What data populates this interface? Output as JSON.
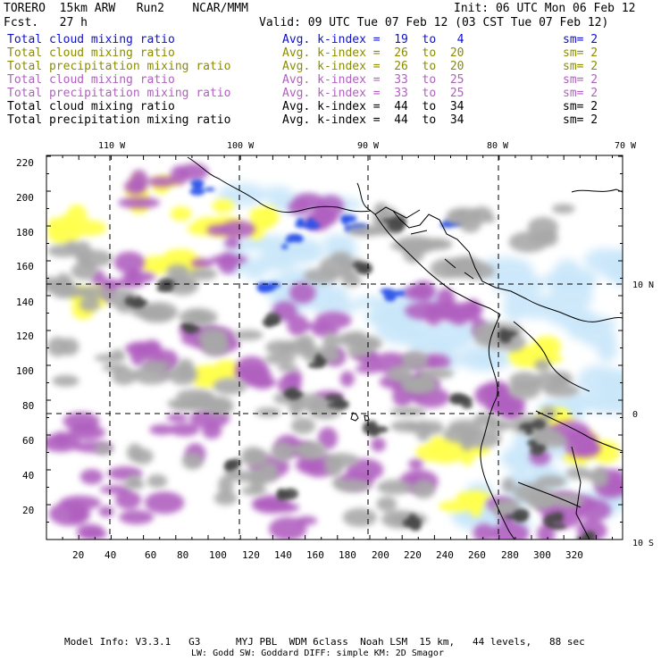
{
  "header": {
    "left_line1": "TORERO  15km ARW   Run2    NCAR/MMM",
    "left_line2": "Fcst.   27 h",
    "init": "Init: 06 UTC Mon 06 Feb 12",
    "valid": "Valid: 09 UTC Tue 07 Feb 12 (03 CST Tue 07 Feb 12)"
  },
  "legend": [
    {
      "field": "Total cloud mixing ratio",
      "kindex": "Avg. k-index =  19  to   4",
      "sm": "sm= 2",
      "color": "#1010d0"
    },
    {
      "field": "Total cloud mixing ratio",
      "kindex": "Avg. k-index =  26  to  20",
      "sm": "sm= 2",
      "color": "#8c8c00"
    },
    {
      "field": "Total precipitation mixing ratio",
      "kindex": "Avg. k-index =  26  to  20",
      "sm": "sm= 2",
      "color": "#8c8c00"
    },
    {
      "field": "Total cloud mixing ratio",
      "kindex": "Avg. k-index =  33  to  25",
      "sm": "sm= 2",
      "color": "#b060c0"
    },
    {
      "field": "Total precipitation mixing ratio",
      "kindex": "Avg. k-index =  33  to  25",
      "sm": "sm= 2",
      "color": "#b060c0"
    },
    {
      "field": "Total cloud mixing ratio",
      "kindex": "Avg. k-index =  44  to  34",
      "sm": "sm= 2",
      "color": "#000000"
    },
    {
      "field": "Total precipitation mixing ratio",
      "kindex": "Avg. k-index =  44  to  34",
      "sm": "sm= 2",
      "color": "#000000"
    }
  ],
  "map": {
    "longitude_labels": [
      "110 W",
      "100 W",
      "90 W",
      "80 W",
      "70 W"
    ],
    "latitude_labels": [
      "10 N",
      "0",
      "10 S"
    ],
    "x_grid_ticks": [
      "20",
      "40",
      "60",
      "80",
      "100",
      "120",
      "140",
      "160",
      "180",
      "200",
      "220",
      "240",
      "260",
      "280",
      "300",
      "320"
    ],
    "y_grid_ticks": [
      "220",
      "200",
      "180",
      "160",
      "140",
      "120",
      "100",
      "80",
      "60",
      "40",
      "20"
    ],
    "colors": {
      "light_blue": "#c8e6fa",
      "mid_blue": "#7ab4ee",
      "blue": "#2a52e8",
      "yellow": "#ffff50",
      "magenta": "#b060c0",
      "gray": "#a8a8a8",
      "dark_gray": "#4a4a4a"
    }
  },
  "footer": {
    "line1": "Model Info: V3.3.1   G3      MYJ PBL  WDM 6class  Noah LSM  15 km,   44 levels,   88 sec",
    "line2": "LW: Godd SW: Goddard DIFF: simple KM: 2D Smagor"
  }
}
